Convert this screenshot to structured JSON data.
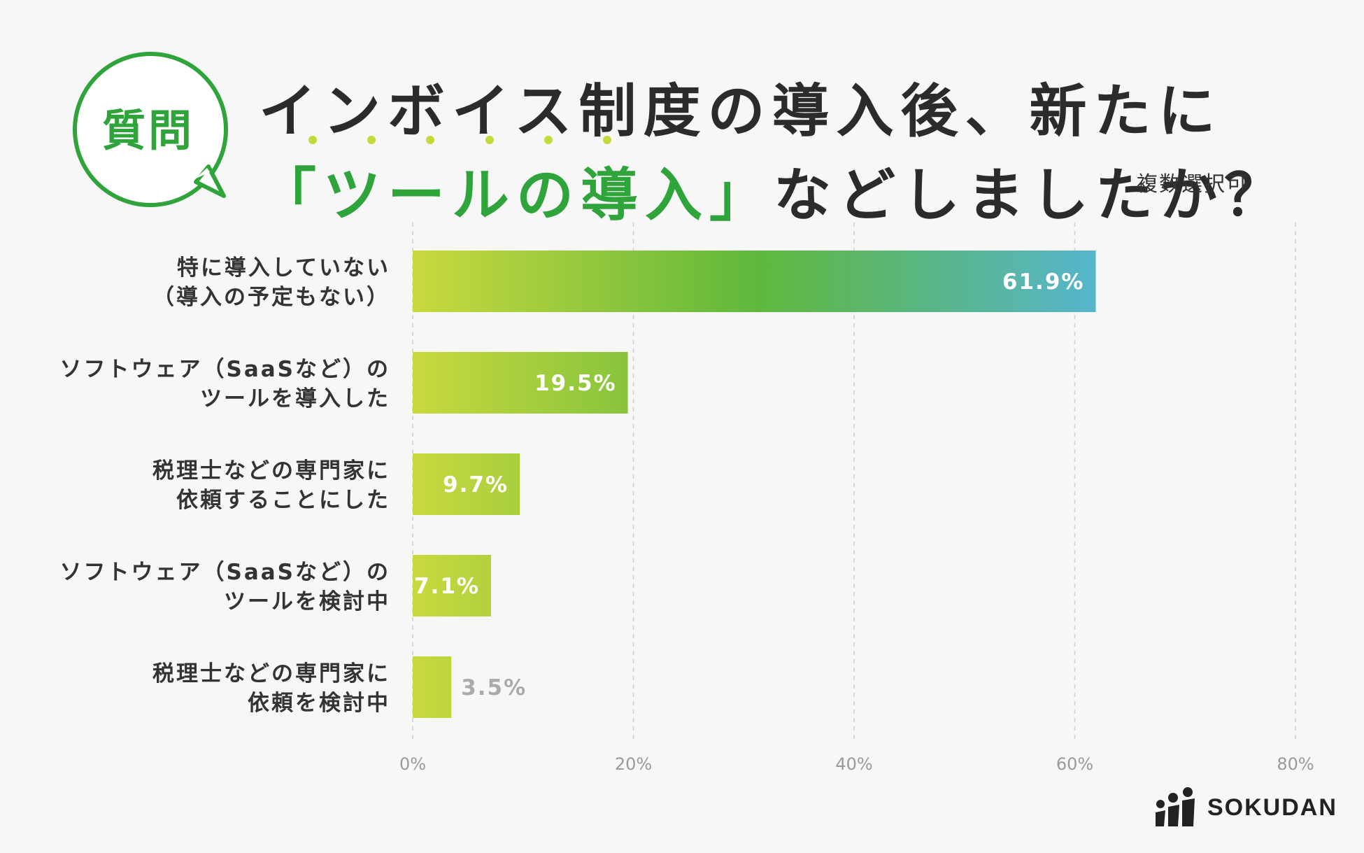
{
  "badge": {
    "label": "質問"
  },
  "title": {
    "line1": "インボイス制度の導入後、新たに",
    "line2_open": "「",
    "line2_highlight": "ツールの導入",
    "line2_close": "」",
    "line2_rest": "などしましたか？",
    "note": "複数選択可"
  },
  "colors": {
    "accent": "#2ea43b",
    "dot": "#c5d93a",
    "bar_start": "#c9d93e",
    "bar_mid": "#5fb83c",
    "bar_end": "#55b5cf",
    "inside_label": "#ffffff",
    "outside_label": "#aaaaaa"
  },
  "chart_data": {
    "type": "bar",
    "orientation": "horizontal",
    "categories": [
      [
        "特に導入していない",
        "（導入の予定もない）"
      ],
      [
        "ソフトウェア（SaaSなど）の",
        "ツールを導入した"
      ],
      [
        "税理士などの専門家に",
        "依頼することにした"
      ],
      [
        "ソフトウェア（SaaSなど）の",
        "ツールを検討中"
      ],
      [
        "税理士などの専門家に",
        "依頼を検討中"
      ]
    ],
    "values": [
      61.9,
      19.5,
      9.7,
      7.1,
      3.5
    ],
    "value_labels": [
      "61.9%",
      "19.5%",
      "9.7%",
      "7.1%",
      "3.5%"
    ],
    "xlim": [
      0,
      80
    ],
    "xticks": [
      0,
      20,
      40,
      60,
      80
    ],
    "xtick_labels": [
      "0%",
      "20%",
      "40%",
      "60%",
      "80%"
    ],
    "grid": true,
    "xlabel": "",
    "ylabel": ""
  },
  "brand": {
    "name": "SOKUDAN"
  }
}
